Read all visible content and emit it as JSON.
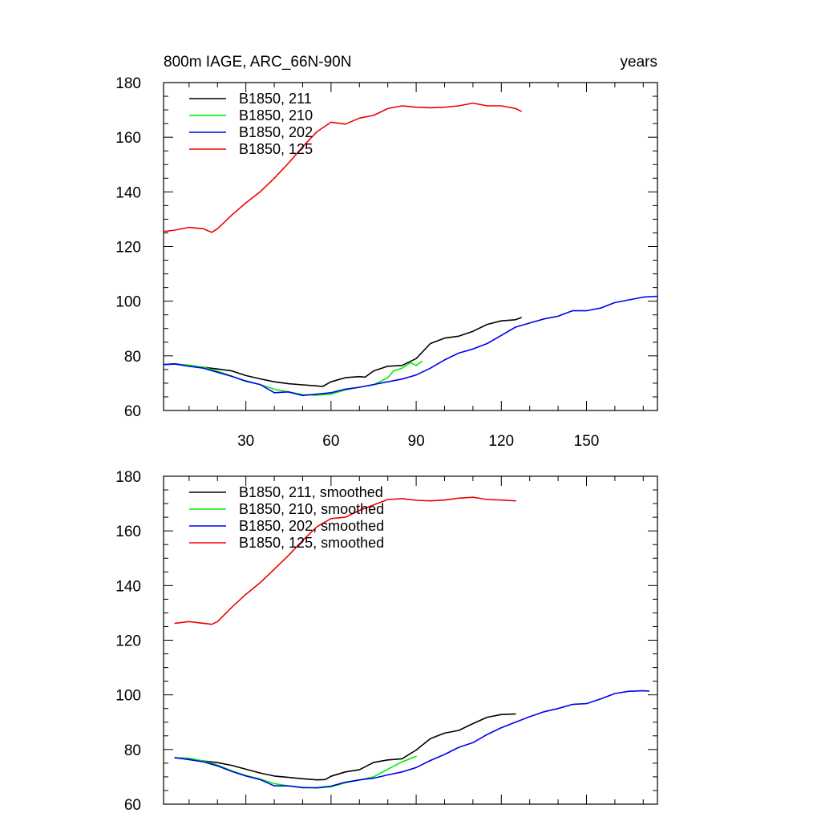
{
  "chart_data": [
    {
      "type": "line",
      "title": "800m IAGE, ARC_66N-90N",
      "title_right": "years",
      "xlim": [
        1,
        175
      ],
      "ylim": [
        60,
        180
      ],
      "x_ticks": [
        30,
        60,
        90,
        120,
        150
      ],
      "x_tick_labels": [
        "30",
        "60",
        "90",
        "120",
        "150"
      ],
      "y_ticks": [
        60,
        80,
        100,
        120,
        140,
        160,
        180
      ],
      "y_tick_labels": [
        "60",
        "80",
        "100",
        "120",
        "140",
        "160",
        "180"
      ],
      "legend_position": "top-left",
      "series": [
        {
          "name": "B1850, 211",
          "color": "#000000",
          "x": [
            1,
            5,
            10,
            15,
            20,
            25,
            30,
            35,
            40,
            45,
            50,
            55,
            57,
            60,
            65,
            70,
            72,
            75,
            80,
            85,
            90,
            95,
            100,
            105,
            110,
            115,
            120,
            125,
            127
          ],
          "y": [
            76.8,
            77.1,
            76.4,
            75.8,
            75.2,
            74.5,
            72.8,
            71.6,
            70.5,
            69.8,
            69.4,
            69.0,
            68.8,
            70.5,
            72.0,
            72.4,
            72.2,
            74.5,
            76.2,
            76.5,
            79.0,
            84.5,
            86.5,
            87.2,
            89.0,
            91.5,
            92.8,
            93.2,
            94.0
          ]
        },
        {
          "name": "B1850, 210",
          "color": "#00ee00",
          "x": [
            1,
            5,
            10,
            15,
            20,
            25,
            30,
            35,
            40,
            45,
            50,
            55,
            60,
            65,
            70,
            75,
            80,
            82,
            85,
            88,
            90,
            92
          ],
          "y": [
            76.8,
            77.0,
            76.6,
            75.8,
            74.4,
            72.6,
            70.6,
            69.5,
            67.8,
            66.8,
            65.8,
            65.6,
            66.0,
            67.5,
            68.5,
            69.4,
            72.0,
            74.5,
            75.5,
            77.5,
            76.5,
            78.0
          ]
        },
        {
          "name": "B1850, 202",
          "color": "#0000ee",
          "x": [
            1,
            5,
            10,
            15,
            20,
            25,
            30,
            35,
            40,
            45,
            50,
            55,
            60,
            65,
            70,
            75,
            80,
            85,
            90,
            95,
            100,
            105,
            110,
            115,
            120,
            125,
            130,
            135,
            140,
            145,
            150,
            155,
            160,
            165,
            170,
            175
          ],
          "y": [
            76.8,
            77.0,
            76.2,
            75.5,
            74.0,
            72.5,
            70.8,
            69.5,
            66.5,
            66.8,
            65.5,
            66.0,
            66.5,
            67.8,
            68.5,
            69.5,
            70.5,
            71.5,
            73.0,
            75.5,
            78.5,
            81.0,
            82.5,
            84.5,
            87.5,
            90.5,
            92.0,
            93.5,
            94.5,
            96.5,
            96.5,
            97.5,
            99.5,
            100.5,
            101.5,
            101.8
          ]
        },
        {
          "name": "B1850, 125",
          "color": "#ee0000",
          "x": [
            1,
            5,
            10,
            15,
            18,
            20,
            25,
            30,
            35,
            40,
            45,
            50,
            55,
            60,
            65,
            70,
            75,
            80,
            85,
            90,
            95,
            100,
            105,
            110,
            115,
            120,
            125,
            127
          ],
          "y": [
            125.5,
            126.0,
            127.0,
            126.5,
            125.2,
            126.5,
            131.5,
            136.0,
            140.0,
            145.0,
            150.5,
            156.5,
            162.0,
            165.5,
            164.8,
            167.0,
            168.0,
            170.5,
            171.5,
            171.0,
            170.8,
            171.0,
            171.5,
            172.5,
            171.5,
            171.5,
            170.5,
            169.5
          ]
        }
      ]
    },
    {
      "type": "line",
      "title": "",
      "xlim": [
        1,
        175
      ],
      "ylim": [
        60,
        180
      ],
      "x_ticks": [
        30,
        60,
        90,
        120,
        150
      ],
      "x_tick_labels": [],
      "y_ticks": [
        60,
        80,
        100,
        120,
        140,
        160,
        180
      ],
      "y_tick_labels": [
        "60",
        "80",
        "100",
        "120",
        "140",
        "160",
        "180"
      ],
      "legend_position": "top-left",
      "series": [
        {
          "name": "B1850, 211, smoothed",
          "color": "#000000",
          "x": [
            5,
            10,
            15,
            20,
            25,
            30,
            35,
            40,
            45,
            50,
            55,
            58,
            60,
            65,
            70,
            75,
            80,
            85,
            90,
            95,
            100,
            105,
            110,
            115,
            120,
            125
          ],
          "y": [
            77.0,
            76.5,
            75.8,
            75.2,
            74.2,
            72.8,
            71.4,
            70.3,
            69.8,
            69.3,
            68.9,
            69.0,
            70.2,
            71.8,
            72.6,
            75.3,
            76.2,
            76.6,
            79.8,
            84.0,
            86.0,
            87.0,
            89.5,
            91.8,
            92.8,
            93.0
          ]
        },
        {
          "name": "B1850, 210, smoothed",
          "color": "#00ee00",
          "x": [
            5,
            10,
            15,
            20,
            25,
            30,
            35,
            40,
            45,
            50,
            55,
            60,
            65,
            70,
            75,
            80,
            85,
            90
          ],
          "y": [
            77.0,
            76.8,
            75.8,
            74.3,
            72.2,
            70.5,
            69.2,
            67.5,
            66.7,
            66.2,
            65.9,
            66.3,
            67.8,
            68.8,
            70.0,
            72.8,
            75.5,
            77.5
          ]
        },
        {
          "name": "B1850, 202, smoothed",
          "color": "#0000ee",
          "x": [
            5,
            10,
            15,
            20,
            25,
            30,
            35,
            40,
            45,
            50,
            55,
            60,
            65,
            70,
            75,
            80,
            85,
            90,
            95,
            100,
            105,
            110,
            115,
            120,
            125,
            130,
            135,
            140,
            145,
            150,
            155,
            160,
            165,
            170,
            172
          ],
          "y": [
            77.0,
            76.3,
            75.5,
            74.0,
            72.0,
            70.3,
            69.0,
            66.7,
            66.7,
            66.0,
            66.0,
            66.6,
            68.0,
            68.9,
            69.5,
            70.7,
            71.8,
            73.4,
            76.0,
            78.2,
            80.8,
            82.5,
            85.5,
            88.0,
            90.0,
            92.0,
            93.8,
            95.0,
            96.5,
            96.8,
            98.5,
            100.5,
            101.3,
            101.5,
            101.4
          ]
        },
        {
          "name": "B1850, 125, smoothed",
          "color": "#ee0000",
          "x": [
            5,
            10,
            15,
            18,
            20,
            25,
            30,
            35,
            40,
            45,
            50,
            55,
            60,
            65,
            70,
            75,
            80,
            85,
            90,
            95,
            100,
            105,
            110,
            115,
            120,
            125
          ],
          "y": [
            126.2,
            126.8,
            126.2,
            125.8,
            126.8,
            132.0,
            136.8,
            141.0,
            146.0,
            151.0,
            156.5,
            161.5,
            164.5,
            165.0,
            167.5,
            169.5,
            171.5,
            171.8,
            171.2,
            171.0,
            171.3,
            172.0,
            172.3,
            171.5,
            171.3,
            171.0
          ]
        }
      ]
    }
  ]
}
